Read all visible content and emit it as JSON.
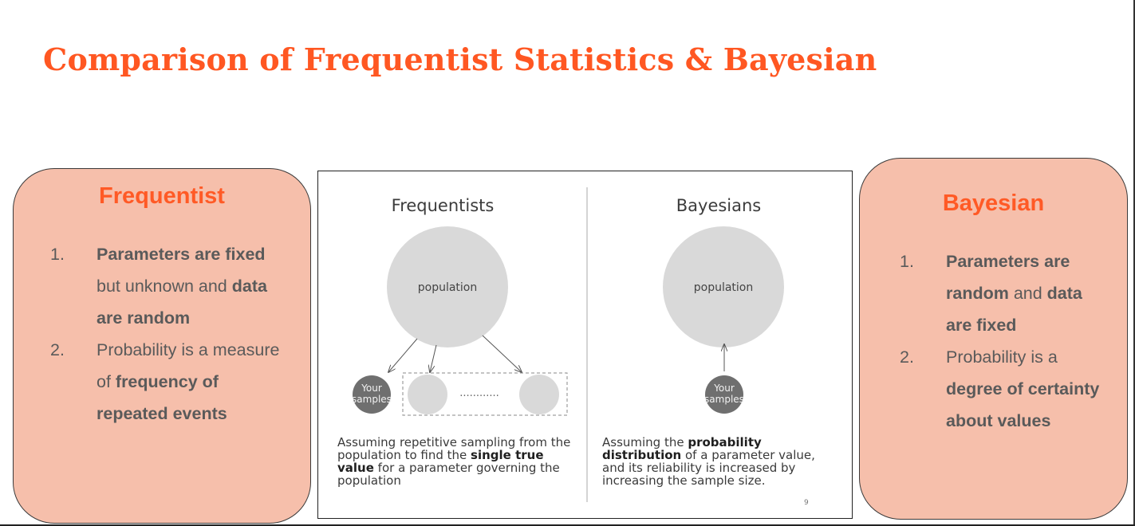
{
  "title": "Comparison of Frequentist Statistics & Bayesian",
  "frequentist_card": {
    "heading": "Frequentist",
    "items": [
      {
        "num": "1.",
        "parts": [
          {
            "text": "Parameters are fixed",
            "bold": true
          },
          {
            "text": " but unknown and ",
            "bold": false
          },
          {
            "text": "data are random",
            "bold": true
          }
        ]
      },
      {
        "num": "2.",
        "parts": [
          {
            "text": "Probability is a measure of ",
            "bold": false
          },
          {
            "text": "frequency of repeated events",
            "bold": true
          }
        ]
      }
    ]
  },
  "bayesian_card": {
    "heading": "Bayesian",
    "items": [
      {
        "num": "1.",
        "parts": [
          {
            "text": "Parameters are random",
            "bold": true
          },
          {
            "text": " and ",
            "bold": false
          },
          {
            "text": "data are fixed",
            "bold": true
          }
        ]
      },
      {
        "num": "2.",
        "parts": [
          {
            "text": "Probability is a ",
            "bold": false
          },
          {
            "text": "degree of certainty about values",
            "bold": true
          }
        ]
      }
    ]
  },
  "figure": {
    "frequentists": {
      "heading": "Frequentists",
      "population_label": "population",
      "samples_label_line1": "Your",
      "samples_label_line2": "samples",
      "dots": "............",
      "caption": [
        {
          "text": "Assuming repetitive sampling from the population to find the ",
          "bold": false
        },
        {
          "text": "single true value",
          "bold": true
        },
        {
          "text": " for a parameter governing the population",
          "bold": false
        }
      ]
    },
    "bayesians": {
      "heading": "Bayesians",
      "population_label": "population",
      "samples_label_line1": "Your",
      "samples_label_line2": "samples",
      "caption": [
        {
          "text": "Assuming the ",
          "bold": false
        },
        {
          "text": "probability distribution",
          "bold": true
        },
        {
          "text": " of a parameter value, and its reliability is increased by increasing the sample size.",
          "bold": false
        }
      ]
    },
    "page_number": "9"
  },
  "colors": {
    "title": "#ff5722",
    "card_fill": "#f6bfab",
    "card_heading": "#ff5a26",
    "card_text": "#5a5a5a",
    "population_circle": "#d9d9d9",
    "sample_circle": "#6f6f6f"
  }
}
